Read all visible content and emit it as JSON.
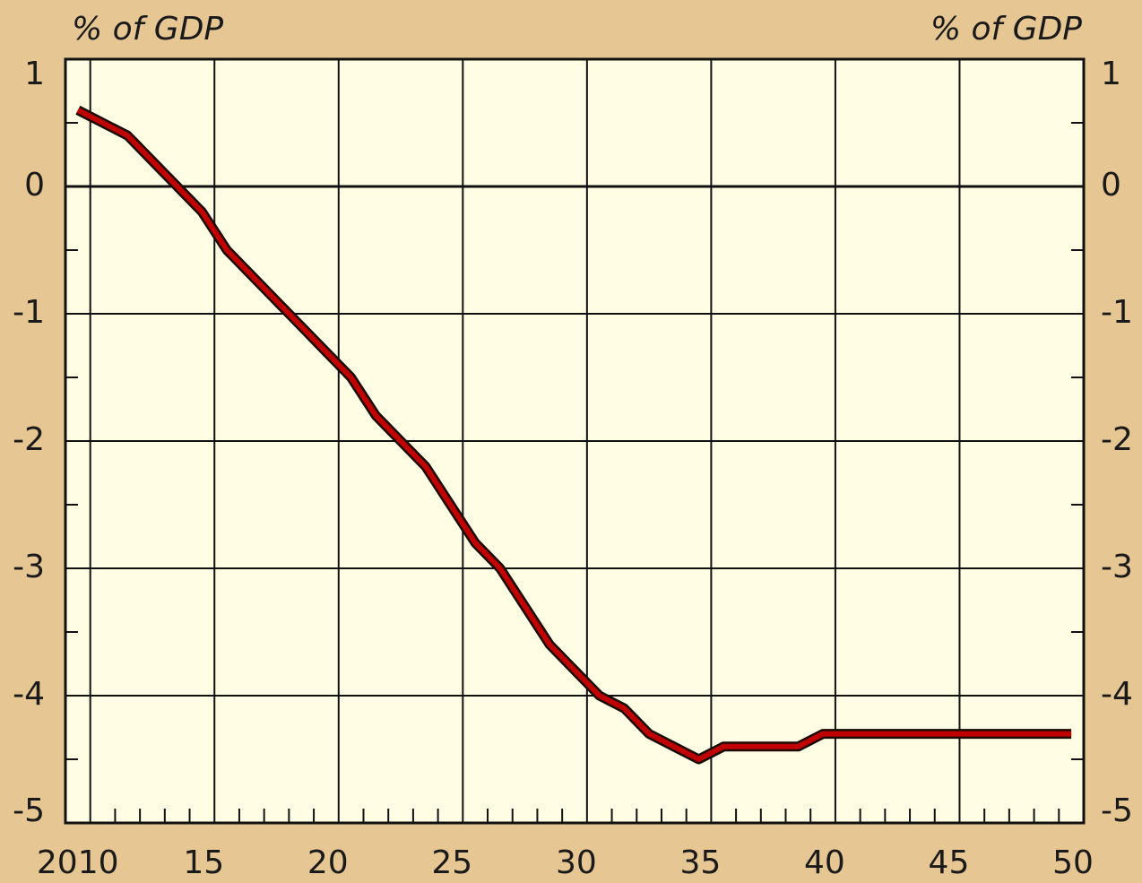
{
  "chart_data": {
    "type": "line",
    "y_label": "% of GDP",
    "y2_label": "% of GDP",
    "x": [
      2009.5,
      2010.5,
      2011.5,
      2012.5,
      2013.5,
      2014.5,
      2015.5,
      2016.5,
      2017.5,
      2018.5,
      2019.5,
      2020.5,
      2021.5,
      2022.5,
      2023.5,
      2024.5,
      2025.5,
      2026.5,
      2027.5,
      2028.5,
      2029.5,
      2030.5,
      2031.5,
      2032.5,
      2033.5,
      2034.5,
      2035.5,
      2036.5,
      2037.5,
      2038.5,
      2039.5,
      2040.5,
      2041.5,
      2042.5,
      2043.5,
      2044.5,
      2045.5,
      2046.5,
      2047.5,
      2048.5,
      2049.5
    ],
    "series": [
      {
        "color": "#c00000",
        "outline": "#1a0a00",
        "values": [
          0.6,
          0.5,
          0.4,
          0.2,
          0.0,
          -0.2,
          -0.5,
          -0.7,
          -0.9,
          -1.1,
          -1.3,
          -1.5,
          -1.8,
          -2.0,
          -2.2,
          -2.5,
          -2.8,
          -3.0,
          -3.3,
          -3.6,
          -3.8,
          -4.0,
          -4.1,
          -4.3,
          -4.4,
          -4.5,
          -4.4,
          -4.4,
          -4.4,
          -4.4,
          -4.3,
          -4.3,
          -4.3,
          -4.3,
          -4.3,
          -4.3,
          -4.3,
          -4.3,
          -4.3,
          -4.3,
          -4.3
        ]
      }
    ],
    "xlim": [
      2009,
      2050
    ],
    "xticks": [
      2010,
      {
        "value": 2015,
        "label": "15"
      },
      {
        "value": 2020,
        "label": "20"
      },
      {
        "value": 2025,
        "label": "25"
      },
      {
        "value": 2030,
        "label": "30"
      },
      {
        "value": 2035,
        "label": "35"
      },
      {
        "value": 2040,
        "label": "40"
      },
      {
        "value": 2045,
        "label": "45"
      },
      {
        "value": 2050,
        "label": "50"
      }
    ],
    "xminorticks": [
      2011,
      2012,
      2013,
      2014,
      2016,
      2017,
      2018,
      2019,
      2021,
      2022,
      2023,
      2024,
      2026,
      2027,
      2028,
      2029,
      2031,
      2032,
      2033,
      2034,
      2036,
      2037,
      2038,
      2039,
      2041,
      2042,
      2043,
      2044,
      2046,
      2047,
      2048,
      2049
    ],
    "ylim": [
      -5,
      1
    ],
    "yticks": [
      1,
      0,
      -1,
      -2,
      -3,
      -4,
      -5
    ],
    "yminorticks": [
      0.5,
      -0.5,
      -1.5,
      -2.5,
      -3.5,
      -4.5
    ],
    "y2lim": [
      -5,
      1
    ],
    "y2ticks": [
      1,
      0,
      -1,
      -2,
      -3,
      -4,
      -5
    ],
    "grid": true,
    "plot_background": "#fffde3"
  }
}
